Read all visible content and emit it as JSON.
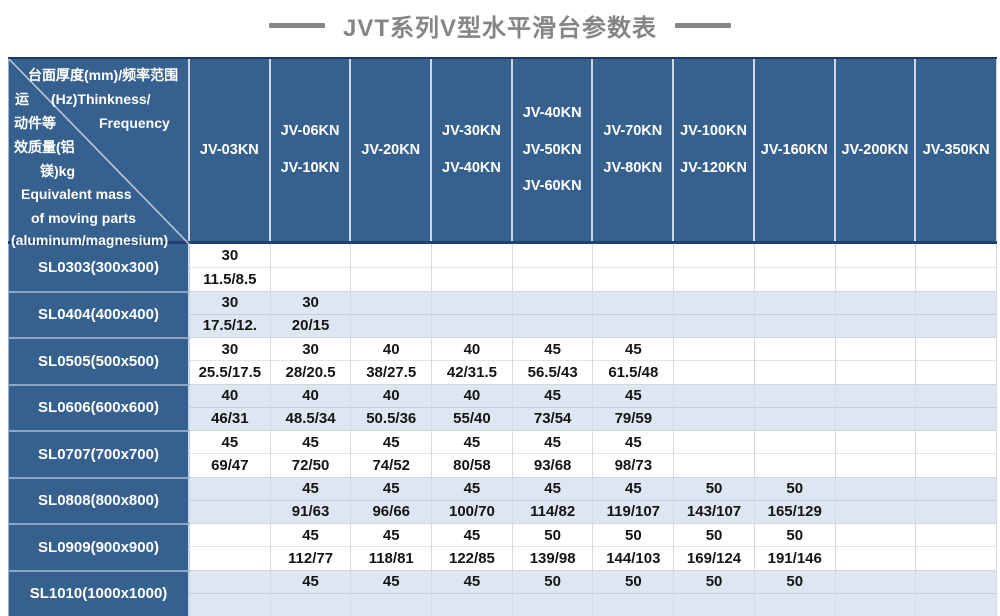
{
  "title": "JVT系列V型水平滑台参数表",
  "colors": {
    "header_blue": "#36618f",
    "band_blue": "#dde6f1",
    "navy_accent": "#1d3a63",
    "title_gray": "#858585"
  },
  "table": {
    "corner": {
      "upper": [
        "台面厚度(mm)/频率范围",
        "(Hz)Thinkness/",
        "Frequency"
      ],
      "lower": [
        "运",
        "动件等",
        "效质量(铝",
        "镁)kg",
        "Equivalent mass",
        "of moving parts",
        "(aluminum/magnesium)"
      ]
    },
    "columns": [
      "JV-03KN",
      "JV-06KN\nJV-10KN",
      "JV-20KN",
      "JV-30KN\nJV-40KN",
      "JV-40KN\nJV-50KN\nJV-60KN",
      "JV-70KN\nJV-80KN",
      "JV-100KN\nJV-120KN",
      "JV-160KN",
      "JV-200KN",
      "JV-350KN"
    ],
    "rows": [
      {
        "label": "SL0303(300x300)",
        "thickness": [
          "30",
          "",
          "",
          "",
          "",
          "",
          "",
          "",
          "",
          ""
        ],
        "mass": [
          "11.5/8.5",
          "",
          "",
          "",
          "",
          "",
          "",
          "",
          "",
          ""
        ]
      },
      {
        "label": "SL0404(400x400)",
        "thickness": [
          "30",
          "30",
          "",
          "",
          "",
          "",
          "",
          "",
          "",
          ""
        ],
        "mass": [
          "17.5/12.",
          "20/15",
          "",
          "",
          "",
          "",
          "",
          "",
          "",
          ""
        ]
      },
      {
        "label": "SL0505(500x500)",
        "thickness": [
          "30",
          "30",
          "40",
          "40",
          "45",
          "45",
          "",
          "",
          "",
          ""
        ],
        "mass": [
          "25.5/17.5",
          "28/20.5",
          "38/27.5",
          "42/31.5",
          "56.5/43",
          "61.5/48",
          "",
          "",
          "",
          ""
        ]
      },
      {
        "label": "SL0606(600x600)",
        "thickness": [
          "40",
          "40",
          "40",
          "40",
          "45",
          "45",
          "",
          "",
          "",
          ""
        ],
        "mass": [
          "46/31",
          "48.5/34",
          "50.5/36",
          "55/40",
          "73/54",
          "79/59",
          "",
          "",
          "",
          ""
        ]
      },
      {
        "label": "SL0707(700x700)",
        "thickness": [
          "45",
          "45",
          "45",
          "45",
          "45",
          "45",
          "",
          "",
          "",
          ""
        ],
        "mass": [
          "69/47",
          "72/50",
          "74/52",
          "80/58",
          "93/68",
          "98/73",
          "",
          "",
          "",
          ""
        ]
      },
      {
        "label": "SL0808(800x800)",
        "thickness": [
          "",
          "45",
          "45",
          "45",
          "45",
          "45",
          "50",
          "50",
          "",
          ""
        ],
        "mass": [
          "",
          "91/63",
          "96/66",
          "100/70",
          "114/82",
          "119/107",
          "143/107",
          "165/129",
          "",
          ""
        ]
      },
      {
        "label": "SL0909(900x900)",
        "thickness": [
          "",
          "45",
          "45",
          "45",
          "50",
          "50",
          "50",
          "50",
          "",
          ""
        ],
        "mass": [
          "",
          "112/77",
          "118/81",
          "122/85",
          "139/98",
          "144/103",
          "169/124",
          "191/146",
          "",
          ""
        ]
      },
      {
        "label": "SL1010(1000x1000)",
        "thickness": [
          "",
          "45",
          "45",
          "45",
          "50",
          "50",
          "50",
          "50",
          "",
          ""
        ],
        "mass": [
          "",
          "",
          "",
          "",
          "",
          "",
          "",
          "",
          "",
          ""
        ]
      }
    ]
  }
}
